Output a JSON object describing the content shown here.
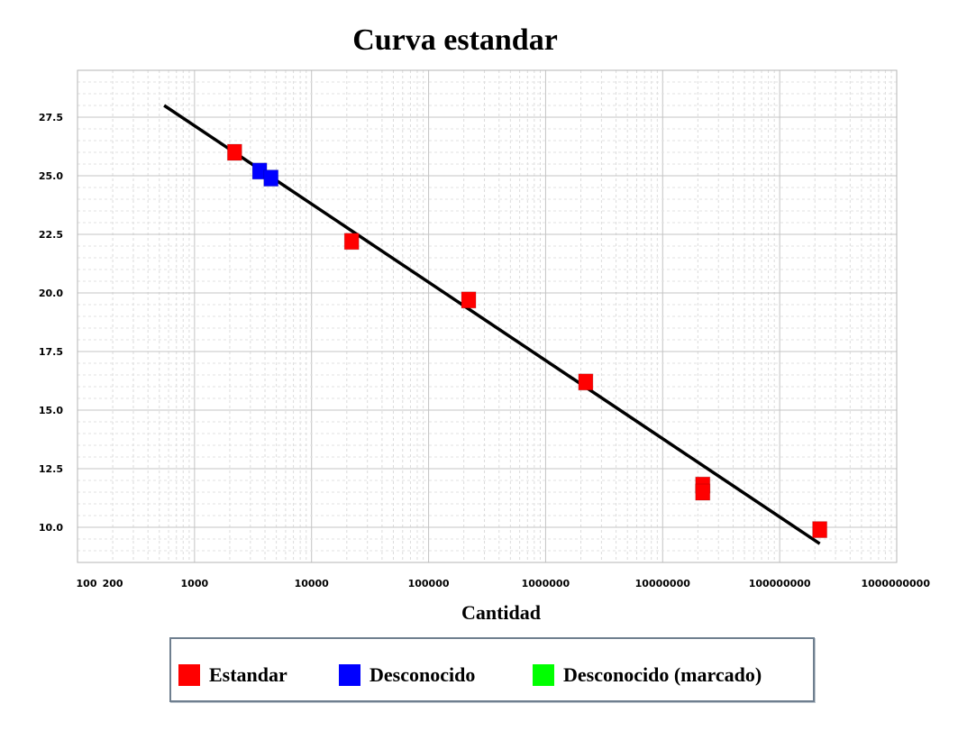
{
  "chart_data": {
    "type": "scatter",
    "title": "Curva estandar",
    "xlabel": "Cantidad",
    "ylabel": "",
    "x_scale": "log",
    "xlim": [
      100,
      1000000000
    ],
    "ylim": [
      8.5,
      29.5
    ],
    "x_ticks": [
      {
        "value": 100,
        "label": "100"
      },
      {
        "value": 200,
        "label": "200"
      },
      {
        "value": 1000,
        "label": "1000"
      },
      {
        "value": 10000,
        "label": "10000"
      },
      {
        "value": 100000,
        "label": "100000"
      },
      {
        "value": 1000000,
        "label": "1000000"
      },
      {
        "value": 10000000,
        "label": "10000000"
      },
      {
        "value": 100000000,
        "label": "100000000"
      },
      {
        "value": 1000000000,
        "label": "1000000000"
      }
    ],
    "y_ticks": [
      {
        "value": 10.0,
        "label": "10.0"
      },
      {
        "value": 12.5,
        "label": "12.5"
      },
      {
        "value": 15.0,
        "label": "15.0"
      },
      {
        "value": 17.5,
        "label": "17.5"
      },
      {
        "value": 20.0,
        "label": "20.0"
      },
      {
        "value": 22.5,
        "label": "22.5"
      },
      {
        "value": 25.0,
        "label": "25.0"
      },
      {
        "value": 27.5,
        "label": "27.5"
      }
    ],
    "grid": true,
    "legend_position": "bottom",
    "fit_line": {
      "x": [
        550,
        220000000
      ],
      "y": [
        28.0,
        9.3
      ]
    },
    "series": [
      {
        "name": "Estandar",
        "color": "#ff0000",
        "points": [
          {
            "x": 2200,
            "y": 26.0
          },
          {
            "x": 22000,
            "y": 22.2
          },
          {
            "x": 220000,
            "y": 19.7
          },
          {
            "x": 2200000,
            "y": 16.2
          },
          {
            "x": 22000000,
            "y": 11.8
          },
          {
            "x": 22000000,
            "y": 11.5
          },
          {
            "x": 220000000,
            "y": 9.9
          }
        ]
      },
      {
        "name": "Desconocido",
        "color": "#0000ff",
        "points": [
          {
            "x": 3600,
            "y": 25.2
          },
          {
            "x": 4500,
            "y": 24.9
          }
        ]
      },
      {
        "name": "Desconocido (marcado)",
        "color": "#00ff00",
        "points": []
      }
    ]
  }
}
